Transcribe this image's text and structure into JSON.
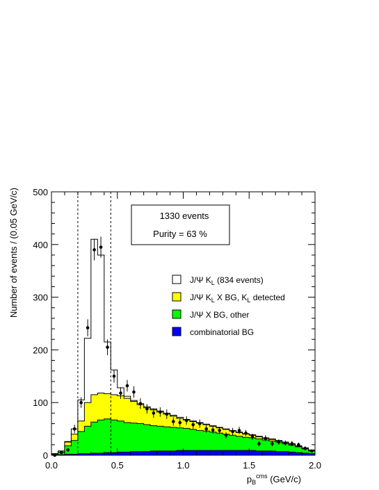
{
  "chart_data": {
    "type": "histogram",
    "xlabel": "p",
    "xlabel_sub": "B",
    "xlabel_sup": "cms",
    "xlabel_unit": " (GeV/c)",
    "ylabel": "Number of events / (0.05 GeV/c)",
    "xlim": [
      0,
      2.0
    ],
    "ylim": [
      0,
      500
    ],
    "x_ticks": [
      0,
      0.5,
      1.0,
      1.5,
      2.0
    ],
    "x_tick_labels": [
      "0.0",
      "0.5",
      "1.0",
      "1.5",
      "2.0"
    ],
    "y_ticks": [
      0,
      100,
      200,
      300,
      400,
      500
    ],
    "y_tick_labels": [
      "0",
      "100",
      "200",
      "300",
      "400",
      "500"
    ],
    "bin_edges": [
      0,
      0.05,
      0.1,
      0.15,
      0.2,
      0.25,
      0.3,
      0.35,
      0.4,
      0.45,
      0.5,
      0.55,
      0.6,
      0.65,
      0.7,
      0.75,
      0.8,
      0.85,
      0.9,
      0.95,
      1.0,
      1.05,
      1.1,
      1.15,
      1.2,
      1.25,
      1.3,
      1.35,
      1.4,
      1.45,
      1.5,
      1.55,
      1.6,
      1.65,
      1.7,
      1.75,
      1.8,
      1.85,
      1.9,
      1.95,
      2.0
    ],
    "stacked_cumulative": [
      {
        "name": "combinatorial BG",
        "color": "#0000ff",
        "values": [
          1,
          1,
          2,
          2,
          3,
          3,
          4,
          4,
          5,
          5,
          6,
          6,
          7,
          7,
          7,
          8,
          8,
          8,
          8,
          9,
          9,
          9,
          9,
          9,
          9,
          9,
          9,
          9,
          9,
          9,
          9,
          8,
          8,
          8,
          7,
          7,
          6,
          5,
          4,
          3
        ]
      },
      {
        "name": "J/Ψ X BG, other",
        "color": "#00ff00",
        "values": [
          2,
          6,
          18,
          28,
          45,
          55,
          63,
          67,
          69,
          67,
          65,
          62,
          61,
          60,
          58,
          56,
          55,
          54,
          53,
          52,
          51,
          49,
          47,
          46,
          44,
          42,
          40,
          38,
          36,
          34,
          33,
          31,
          29,
          27,
          25,
          22,
          19,
          16,
          12,
          8
        ]
      },
      {
        "name": "J/Ψ K_L X BG, K_L detected",
        "color": "#ffff00",
        "values": [
          3,
          8,
          25,
          40,
          65,
          100,
          115,
          118,
          117,
          115,
          113,
          108,
          102,
          96,
          90,
          86,
          82,
          78,
          74,
          70,
          67,
          64,
          61,
          58,
          55,
          52,
          49,
          46,
          43,
          40,
          38,
          35,
          32,
          30,
          27,
          24,
          21,
          17,
          13,
          9
        ]
      },
      {
        "name": "J/Ψ K_L (834 events)",
        "color": "#ffffff",
        "values": [
          3,
          8,
          26,
          50,
          105,
          222,
          410,
          380,
          215,
          162,
          128,
          112,
          104,
          98,
          92,
          88,
          84,
          80,
          76,
          72,
          68,
          65,
          62,
          59,
          56,
          53,
          50,
          47,
          44,
          41,
          39,
          36,
          33,
          31,
          28,
          25,
          22,
          18,
          14,
          10
        ]
      }
    ],
    "data_points": {
      "x": [
        0.025,
        0.075,
        0.125,
        0.175,
        0.225,
        0.275,
        0.325,
        0.375,
        0.425,
        0.475,
        0.525,
        0.575,
        0.625,
        0.675,
        0.725,
        0.775,
        0.825,
        0.875,
        0.925,
        0.975,
        1.025,
        1.075,
        1.125,
        1.175,
        1.225,
        1.275,
        1.325,
        1.375,
        1.425,
        1.475,
        1.525,
        1.575,
        1.625,
        1.675,
        1.725,
        1.775,
        1.825,
        1.875,
        1.925,
        1.975
      ],
      "y": [
        0,
        5,
        10,
        50,
        100,
        242,
        390,
        395,
        205,
        150,
        118,
        132,
        120,
        98,
        88,
        80,
        82,
        78,
        64,
        62,
        66,
        58,
        60,
        50,
        48,
        47,
        38,
        45,
        47,
        42,
        35,
        22,
        32,
        22,
        25,
        23,
        22,
        20,
        13,
        8
      ],
      "yerr": [
        2,
        3,
        4,
        8,
        10,
        16,
        20,
        20,
        15,
        12,
        11,
        11,
        11,
        10,
        9,
        9,
        9,
        9,
        8,
        8,
        8,
        8,
        8,
        7,
        7,
        7,
        6,
        7,
        7,
        6,
        6,
        5,
        6,
        5,
        5,
        5,
        5,
        4,
        4,
        3
      ]
    },
    "cut_lines_x": [
      0.2,
      0.45
    ],
    "legend": [
      {
        "label": "J/Ψ K",
        "sub": "L",
        "rest": " (834 events)",
        "color": "#ffffff"
      },
      {
        "label": "J/Ψ K",
        "sub": "L",
        "rest": " X BG, K",
        "sub2": "L",
        "rest2": " detected",
        "color": "#ffff00"
      },
      {
        "label": "J/Ψ X BG, other",
        "color": "#00ff00"
      },
      {
        "label": "combinatorial BG",
        "color": "#0000ff"
      }
    ],
    "annotation": {
      "line1": "1330 events",
      "line2": "Purity = 63 %"
    }
  }
}
